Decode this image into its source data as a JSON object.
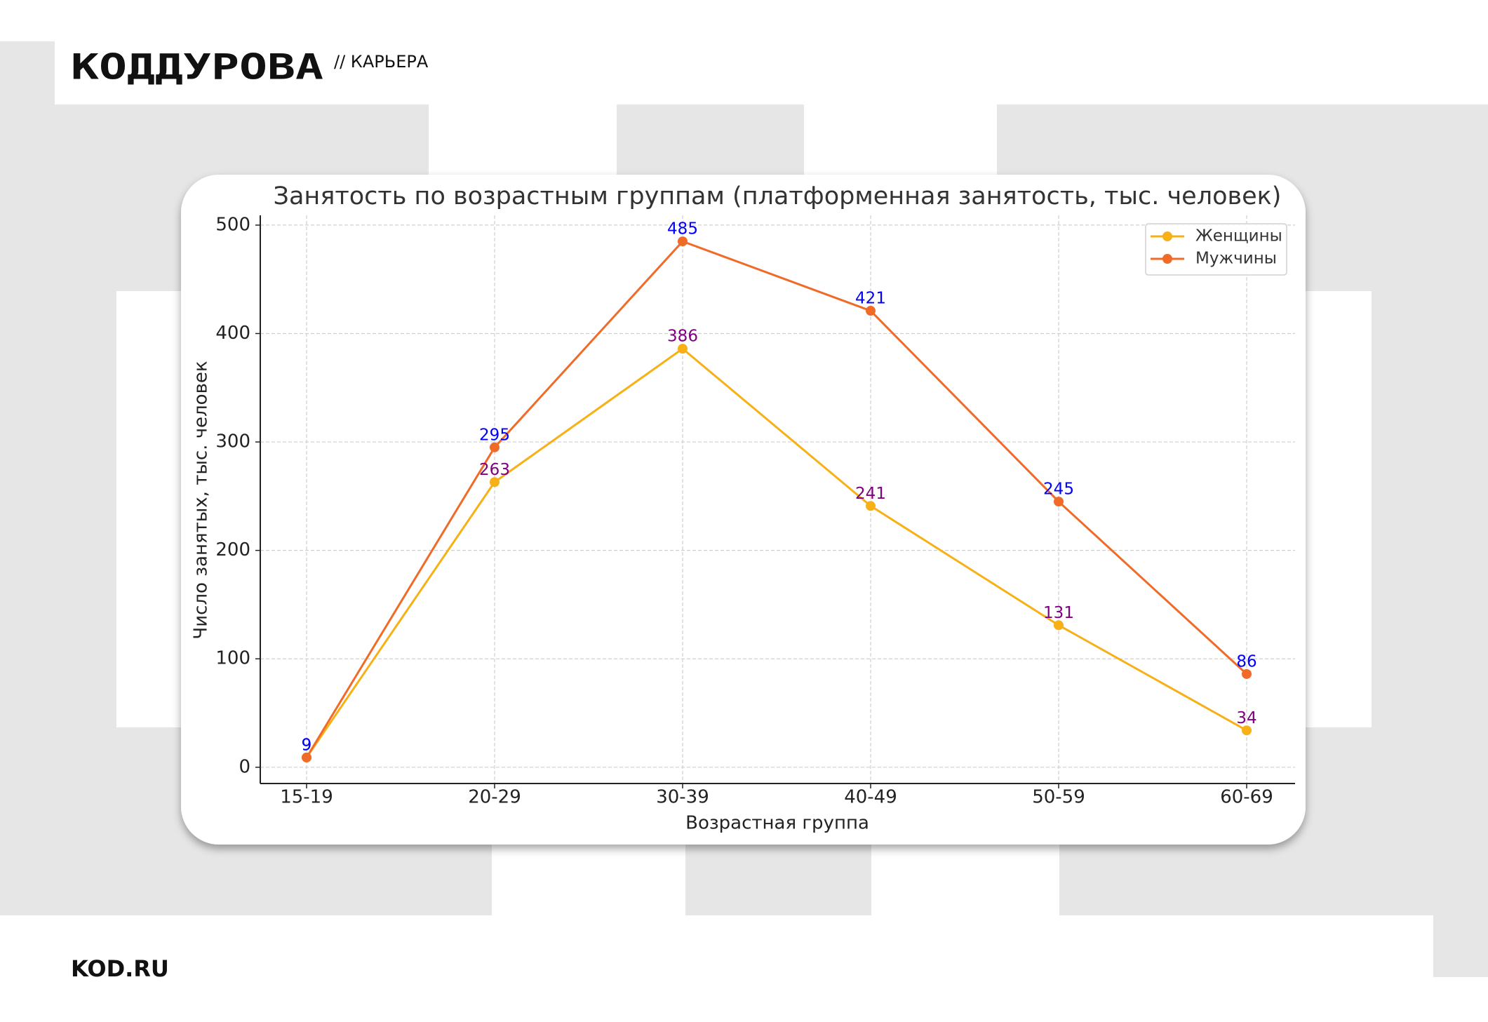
{
  "header": {
    "logo": "КОДДУРОВА",
    "section": "// КАРЬЕРА"
  },
  "footer": {
    "site": "KOD.RU"
  },
  "chart_data": {
    "type": "line",
    "title": "Занятость по возрастным группам (платформенная занятость, тыс. человек)",
    "xlabel": "Возрастная группа",
    "ylabel": "Число занятых, тыс. человек",
    "categories": [
      "15-19",
      "20-29",
      "30-39",
      "40-49",
      "50-59",
      "60-69"
    ],
    "series": [
      {
        "name": "Женщины",
        "color": "#f7b015",
        "label_color": "#800080",
        "values": [
          9,
          263,
          386,
          241,
          131,
          34
        ]
      },
      {
        "name": "Мужчины",
        "color": "#f06a28",
        "label_color": "#0000ff",
        "values": [
          9,
          295,
          485,
          421,
          245,
          86
        ]
      }
    ],
    "ylim": [
      -15,
      509
    ],
    "yticks": [
      0,
      100,
      200,
      300,
      400,
      500
    ],
    "grid": true,
    "legend": "upper right"
  }
}
